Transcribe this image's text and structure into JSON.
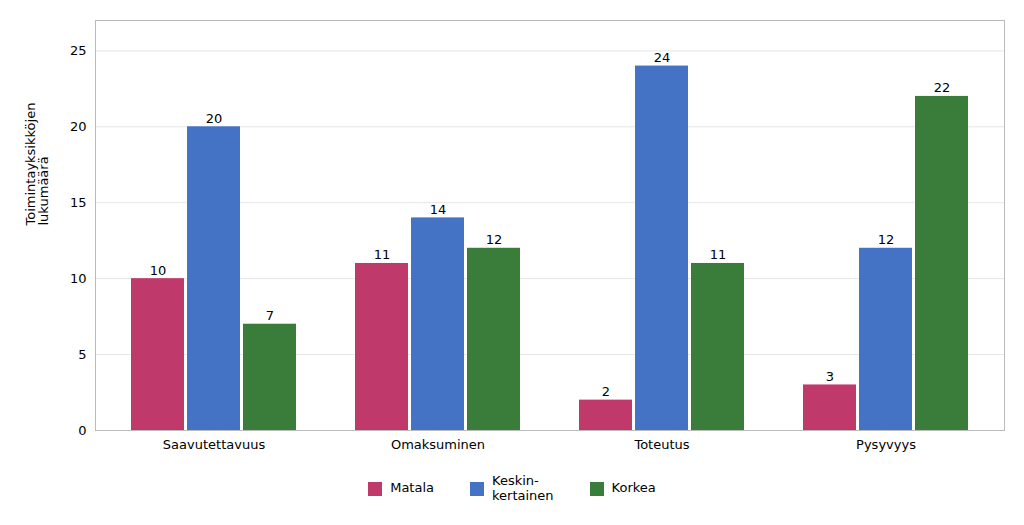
{
  "chart_data": {
    "type": "bar",
    "categories": [
      "Saavutettavuus",
      "Omaksuminen",
      "Toteutus",
      "Pysyvyys"
    ],
    "series": [
      {
        "name": "Matala",
        "color": "#c0396b",
        "values": [
          10,
          11,
          2,
          3
        ]
      },
      {
        "name": "Keskin-\nkertainen",
        "color": "#4472c4",
        "values": [
          20,
          14,
          24,
          12
        ]
      },
      {
        "name": "Korkea",
        "color": "#3a7d3a",
        "values": [
          7,
          12,
          11,
          22
        ]
      }
    ],
    "y_label": "Toimintayksikköjen\nlukumäärä",
    "ylim": [
      0,
      27
    ],
    "yticks": [
      0,
      5,
      10,
      15,
      20,
      25
    ],
    "grid": true,
    "data_labels": true,
    "legend": "bottom"
  }
}
